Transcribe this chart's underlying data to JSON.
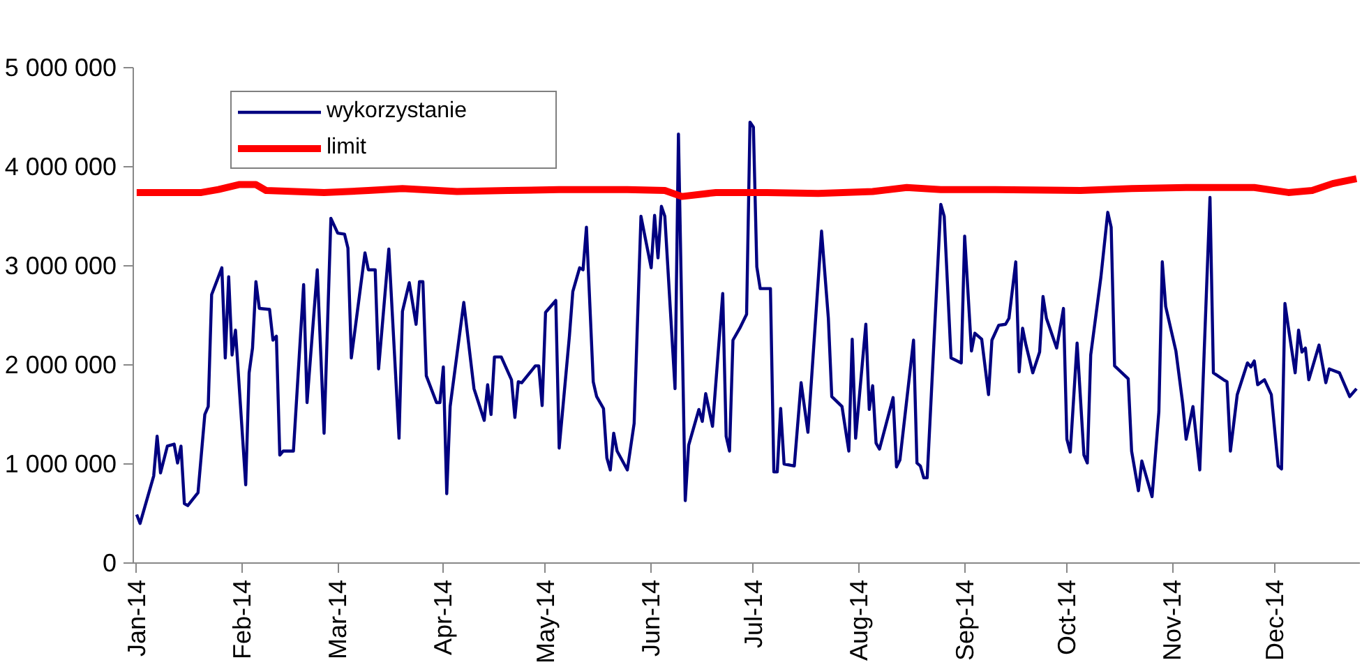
{
  "chart_data": {
    "type": "line",
    "legend": "top",
    "grid": false,
    "marker": "none",
    "line_style": "solid",
    "xlim": [
      "2013-12-31",
      "2014-12-26"
    ],
    "xticks": [
      {
        "value": "2014-01-01",
        "label": "Jan-14"
      },
      {
        "value": "2014-02-01",
        "label": "Feb-14"
      },
      {
        "value": "2014-03-01",
        "label": "Mar-14"
      },
      {
        "value": "2014-04-01",
        "label": "Apr-14"
      },
      {
        "value": "2014-05-01",
        "label": "May-14"
      },
      {
        "value": "2014-06-01",
        "label": "Jun-14"
      },
      {
        "value": "2014-07-01",
        "label": "Jul-14"
      },
      {
        "value": "2014-08-01",
        "label": "Aug-14"
      },
      {
        "value": "2014-09-01",
        "label": "Sep-14"
      },
      {
        "value": "2014-10-01",
        "label": "Oct-14"
      },
      {
        "value": "2014-11-01",
        "label": "Nov-14"
      },
      {
        "value": "2014-12-01",
        "label": "Dec-14"
      }
    ],
    "ylim": [
      0,
      5000000
    ],
    "yticks": [
      {
        "value": 0,
        "label": "0"
      },
      {
        "value": 1000000,
        "label": "1 000 000"
      },
      {
        "value": 2000000,
        "label": "2 000 000"
      },
      {
        "value": 3000000,
        "label": "3 000 000"
      },
      {
        "value": 4000000,
        "label": "4 000 000"
      },
      {
        "value": 5000000,
        "label": "5 000 000"
      }
    ],
    "series": [
      {
        "name": "wykorzystanie",
        "color": "#000080",
        "x": [
          "2014-01-01",
          "2014-01-02",
          "2014-01-06",
          "2014-01-07",
          "2014-01-08",
          "2014-01-10",
          "2014-01-12",
          "2014-01-13",
          "2014-01-14",
          "2014-01-15",
          "2014-01-16",
          "2014-01-19",
          "2014-01-21",
          "2014-01-22",
          "2014-01-23",
          "2014-01-26",
          "2014-01-27",
          "2014-01-28",
          "2014-01-29",
          "2014-01-30",
          "2014-02-02",
          "2014-02-03",
          "2014-02-04",
          "2014-02-05",
          "2014-02-06",
          "2014-02-09",
          "2014-02-10",
          "2014-02-11",
          "2014-02-12",
          "2014-02-13",
          "2014-02-16",
          "2014-02-19",
          "2014-02-20",
          "2014-02-23",
          "2014-02-25",
          "2014-02-27",
          "2014-03-01",
          "2014-03-03",
          "2014-03-04",
          "2014-03-05",
          "2014-03-09",
          "2014-03-10",
          "2014-03-12",
          "2014-03-13",
          "2014-03-16",
          "2014-03-19",
          "2014-03-20",
          "2014-03-22",
          "2014-03-24",
          "2014-03-25",
          "2014-03-26",
          "2014-03-27",
          "2014-03-30",
          "2014-03-31",
          "2014-04-01",
          "2014-04-02",
          "2014-04-03",
          "2014-04-07",
          "2014-04-10",
          "2014-04-13",
          "2014-04-14",
          "2014-04-15",
          "2014-04-16",
          "2014-04-18",
          "2014-04-21",
          "2014-04-22",
          "2014-04-23",
          "2014-04-24",
          "2014-04-28",
          "2014-04-29",
          "2014-04-30",
          "2014-05-01",
          "2014-05-04",
          "2014-05-05",
          "2014-05-08",
          "2014-05-09",
          "2014-05-11",
          "2014-05-12",
          "2014-05-13",
          "2014-05-15",
          "2014-05-16",
          "2014-05-18",
          "2014-05-19",
          "2014-05-20",
          "2014-05-21",
          "2014-05-22",
          "2014-05-25",
          "2014-05-27",
          "2014-05-29",
          "2014-06-01",
          "2014-06-02",
          "2014-06-03",
          "2014-06-04",
          "2014-06-05",
          "2014-06-08",
          "2014-06-09",
          "2014-06-11",
          "2014-06-12",
          "2014-06-15",
          "2014-06-16",
          "2014-06-17",
          "2014-06-19",
          "2014-06-22",
          "2014-06-23",
          "2014-06-24",
          "2014-06-25",
          "2014-06-27",
          "2014-06-29",
          "2014-06-30",
          "2014-07-01",
          "2014-07-02",
          "2014-07-03",
          "2014-07-06",
          "2014-07-07",
          "2014-07-08",
          "2014-07-09",
          "2014-07-10",
          "2014-07-13",
          "2014-07-15",
          "2014-07-17",
          "2014-07-21",
          "2014-07-23",
          "2014-07-24",
          "2014-07-27",
          "2014-07-29",
          "2014-07-30",
          "2014-07-31",
          "2014-08-03",
          "2014-08-04",
          "2014-08-05",
          "2014-08-06",
          "2014-08-07",
          "2014-08-11",
          "2014-08-12",
          "2014-08-13",
          "2014-08-17",
          "2014-08-18",
          "2014-08-19",
          "2014-08-20",
          "2014-08-21",
          "2014-08-25",
          "2014-08-26",
          "2014-08-28",
          "2014-08-31",
          "2014-09-01",
          "2014-09-03",
          "2014-09-04",
          "2014-09-06",
          "2014-09-08",
          "2014-09-09",
          "2014-09-11",
          "2014-09-13",
          "2014-09-14",
          "2014-09-16",
          "2014-09-17",
          "2014-09-18",
          "2014-09-19",
          "2014-09-21",
          "2014-09-23",
          "2014-09-24",
          "2014-09-25",
          "2014-09-28",
          "2014-09-30",
          "2014-10-01",
          "2014-10-02",
          "2014-10-04",
          "2014-10-06",
          "2014-10-07",
          "2014-10-08",
          "2014-10-11",
          "2014-10-13",
          "2014-10-14",
          "2014-10-15",
          "2014-10-19",
          "2014-10-20",
          "2014-10-22",
          "2014-10-23",
          "2014-10-26",
          "2014-10-28",
          "2014-10-29",
          "2014-10-30",
          "2014-11-02",
          "2014-11-04",
          "2014-11-05",
          "2014-11-07",
          "2014-11-09",
          "2014-11-12",
          "2014-11-13",
          "2014-11-16",
          "2014-11-17",
          "2014-11-18",
          "2014-11-20",
          "2014-11-23",
          "2014-11-24",
          "2014-11-25",
          "2014-11-26",
          "2014-11-28",
          "2014-11-30",
          "2014-12-02",
          "2014-12-03",
          "2014-12-04",
          "2014-12-05",
          "2014-12-07",
          "2014-12-08",
          "2014-12-09",
          "2014-12-10",
          "2014-12-11",
          "2014-12-14",
          "2014-12-16",
          "2014-12-17",
          "2014-12-20",
          "2014-12-23",
          "2014-12-25"
        ],
        "values": [
          490000,
          400000,
          880000,
          1280000,
          910000,
          1180000,
          1200000,
          1010000,
          1180000,
          600000,
          580000,
          710000,
          1500000,
          1580000,
          2710000,
          2980000,
          2070000,
          2890000,
          2100000,
          2350000,
          790000,
          1920000,
          2170000,
          2840000,
          2570000,
          2560000,
          2250000,
          2290000,
          1090000,
          1130000,
          1130000,
          2810000,
          1620000,
          2960000,
          1310000,
          3480000,
          3330000,
          3320000,
          3180000,
          2070000,
          3130000,
          2960000,
          2960000,
          1960000,
          3170000,
          1260000,
          2540000,
          2830000,
          2410000,
          2840000,
          2840000,
          1890000,
          1620000,
          1620000,
          1980000,
          700000,
          1580000,
          2630000,
          1760000,
          1440000,
          1800000,
          1500000,
          2080000,
          2080000,
          1850000,
          1470000,
          1830000,
          1820000,
          1990000,
          1990000,
          1590000,
          2530000,
          2650000,
          1160000,
          2290000,
          2740000,
          2980000,
          2960000,
          3390000,
          1830000,
          1680000,
          1560000,
          1060000,
          940000,
          1310000,
          1130000,
          940000,
          1410000,
          3500000,
          2980000,
          3510000,
          3080000,
          3600000,
          3500000,
          1760000,
          4330000,
          630000,
          1190000,
          1550000,
          1430000,
          1710000,
          1380000,
          2720000,
          1280000,
          1130000,
          2250000,
          2370000,
          2510000,
          4450000,
          4400000,
          2990000,
          2770000,
          2770000,
          920000,
          920000,
          1560000,
          1000000,
          980000,
          1820000,
          1320000,
          3350000,
          2470000,
          1680000,
          1580000,
          1130000,
          2260000,
          1260000,
          2410000,
          1550000,
          1790000,
          1210000,
          1150000,
          1670000,
          970000,
          1040000,
          2250000,
          1010000,
          980000,
          860000,
          860000,
          3620000,
          3500000,
          2070000,
          2020000,
          3300000,
          2140000,
          2320000,
          2260000,
          1700000,
          2250000,
          2400000,
          2410000,
          2470000,
          3040000,
          1930000,
          2370000,
          2200000,
          1920000,
          2130000,
          2690000,
          2470000,
          2170000,
          2570000,
          1250000,
          1120000,
          2220000,
          1090000,
          1010000,
          2100000,
          2890000,
          3540000,
          3390000,
          1990000,
          1860000,
          1130000,
          730000,
          1030000,
          670000,
          1530000,
          3040000,
          2590000,
          2140000,
          1610000,
          1250000,
          1580000,
          940000,
          3690000,
          1920000,
          1850000,
          1830000,
          1130000,
          1700000,
          2020000,
          1980000,
          2040000,
          1800000,
          1850000,
          1700000,
          980000,
          950000,
          2620000,
          2380000,
          1920000,
          2350000,
          2130000,
          2170000,
          1850000,
          2200000,
          1820000,
          1960000,
          1920000,
          1680000,
          1760000
        ]
      },
      {
        "name": "limit",
        "color": "#ff0000",
        "x": [
          "2014-01-01",
          "2014-01-20",
          "2014-01-25",
          "2014-01-31",
          "2014-02-05",
          "2014-02-08",
          "2014-02-25",
          "2014-03-10",
          "2014-03-20",
          "2014-04-05",
          "2014-04-20",
          "2014-05-05",
          "2014-05-25",
          "2014-06-05",
          "2014-06-10",
          "2014-06-20",
          "2014-07-05",
          "2014-07-20",
          "2014-08-05",
          "2014-08-15",
          "2014-08-25",
          "2014-09-10",
          "2014-10-05",
          "2014-10-20",
          "2014-11-05",
          "2014-11-25",
          "2014-12-05",
          "2014-12-12",
          "2014-12-18",
          "2014-12-25"
        ],
        "values": [
          3740000,
          3740000,
          3770000,
          3820000,
          3820000,
          3760000,
          3740000,
          3760000,
          3780000,
          3750000,
          3760000,
          3770000,
          3770000,
          3760000,
          3700000,
          3740000,
          3740000,
          3730000,
          3750000,
          3790000,
          3770000,
          3770000,
          3760000,
          3780000,
          3790000,
          3790000,
          3740000,
          3760000,
          3830000,
          3880000
        ]
      }
    ]
  }
}
